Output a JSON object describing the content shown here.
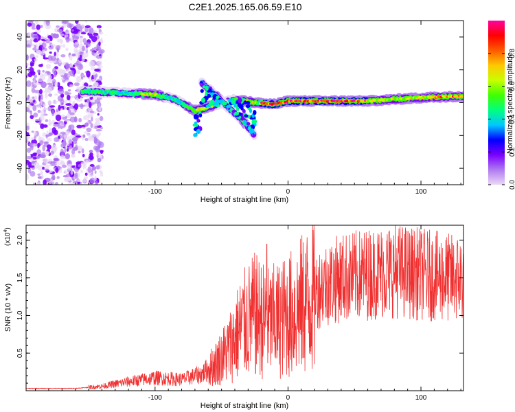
{
  "title": "C2E1.2025.165.06.59.E10",
  "colors": {
    "snr_line": "#f03030",
    "colorbar_stops": [
      "#e9d8f5",
      "#b07af0",
      "#7a00ff",
      "#0000ff",
      "#00c8ff",
      "#00ff80",
      "#40ff00",
      "#c8ff00",
      "#ffc800",
      "#ff5a00",
      "#ff0000",
      "#ff00a0"
    ]
  },
  "chart_data": [
    {
      "type": "heatmap",
      "xlabel": "Height of straight line (km)",
      "ylabel": "Frequency (Hz)",
      "xlim": [
        -197,
        132
      ],
      "ylim": [
        -50,
        50
      ],
      "xticks": [
        {
          "value": -100,
          "label": "-100"
        },
        {
          "value": 0,
          "label": "0"
        },
        {
          "value": 100,
          "label": "100"
        }
      ],
      "yticks": [
        {
          "value": -40,
          "label": "-40"
        },
        {
          "value": -20,
          "label": "-20"
        },
        {
          "value": 0,
          "label": "0"
        },
        {
          "value": 20,
          "label": "20"
        },
        {
          "value": 40,
          "label": "40"
        }
      ],
      "colorbar": {
        "label": "Normalized spectral amplitude",
        "range": [
          0,
          1
        ],
        "ticks": [
          {
            "value": 0.0,
            "label": "0.0"
          },
          {
            "value": 0.2,
            "label": "0.2"
          },
          {
            "value": 0.4,
            "label": "0.4"
          },
          {
            "value": 0.6,
            "label": "0.6"
          },
          {
            "value": 0.8,
            "label": "0.8"
          }
        ]
      },
      "main_trace": [
        {
          "x": -155,
          "f": 7
        },
        {
          "x": -130,
          "f": 6
        },
        {
          "x": -100,
          "f": 5
        },
        {
          "x": -85,
          "f": 2
        },
        {
          "x": -70,
          "f": -5
        },
        {
          "x": -62,
          "f": -3
        },
        {
          "x": -40,
          "f": 2
        },
        {
          "x": -25,
          "f": 0
        },
        {
          "x": -10,
          "f": -1
        },
        {
          "x": 0,
          "f": 1
        },
        {
          "x": 40,
          "f": 1
        },
        {
          "x": 60,
          "f": 1
        },
        {
          "x": 80,
          "f": 2
        },
        {
          "x": 100,
          "f": 3
        },
        {
          "x": 132,
          "f": 4
        }
      ],
      "branch_trace": [
        {
          "x": -65,
          "f": 12
        },
        {
          "x": -55,
          "f": 5
        },
        {
          "x": -45,
          "f": -3
        },
        {
          "x": -35,
          "f": -10
        },
        {
          "x": -25,
          "f": -20
        }
      ],
      "noise_region": {
        "x_from": -197,
        "x_to": -140,
        "f_from": -50,
        "f_to": 50
      }
    },
    {
      "type": "line",
      "xlabel": "Height of straight line (km)",
      "ylabel": "SNR (10 * v/v)",
      "y_multiplier": "(x10",
      "y_multiplier_exp": "4",
      "y_multiplier_close": ")",
      "xlim": [
        -197,
        132
      ],
      "ylim": [
        0,
        2.2
      ],
      "xticks": [
        {
          "value": -100,
          "label": "-100"
        },
        {
          "value": 0,
          "label": "0"
        },
        {
          "value": 100,
          "label": "100"
        }
      ],
      "yticks": [
        {
          "value": 0.5,
          "label": "0.5"
        },
        {
          "value": 1.0,
          "label": "1.0"
        },
        {
          "value": 1.5,
          "label": "1.5"
        },
        {
          "value": 2.0,
          "label": "2.0"
        }
      ],
      "series": [
        {
          "values_envelope": [
            {
              "x": -197,
              "y": 0.03
            },
            {
              "x": -160,
              "y": 0.03
            },
            {
              "x": -140,
              "y": 0.06
            },
            {
              "x": -120,
              "y": 0.12
            },
            {
              "x": -100,
              "y": 0.17
            },
            {
              "x": -80,
              "y": 0.15
            },
            {
              "x": -65,
              "y": 0.22
            },
            {
              "x": -55,
              "y": 0.35
            },
            {
              "x": -45,
              "y": 0.55
            },
            {
              "x": -35,
              "y": 0.85
            },
            {
              "x": -25,
              "y": 1.0
            },
            {
              "x": -15,
              "y": 0.9
            },
            {
              "x": -5,
              "y": 0.95
            },
            {
              "x": 5,
              "y": 1.05
            },
            {
              "x": 15,
              "y": 1.2
            },
            {
              "x": 25,
              "y": 1.4
            },
            {
              "x": 40,
              "y": 1.5
            },
            {
              "x": 60,
              "y": 1.55
            },
            {
              "x": 80,
              "y": 1.6
            },
            {
              "x": 100,
              "y": 1.55
            },
            {
              "x": 120,
              "y": 1.5
            },
            {
              "x": 132,
              "y": 1.5
            }
          ],
          "spike": {
            "x": -16,
            "y": 1.95
          }
        }
      ]
    }
  ]
}
